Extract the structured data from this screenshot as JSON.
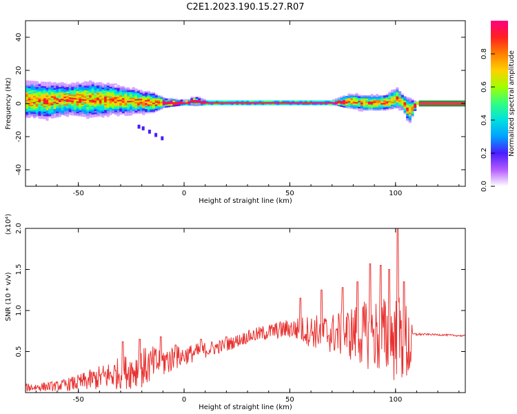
{
  "title": "C2E1.2023.190.15.27.R07",
  "colors": {
    "snr_line": "#e8312f",
    "band_red": "#e8384c",
    "band_green": "#1a9a3a",
    "colormap": [
      "#ffffff",
      "#b45cff",
      "#4a1cff",
      "#00a0ff",
      "#00e0e0",
      "#30ff80",
      "#a0ff00",
      "#ffd000",
      "#ff8000",
      "#ff2020",
      "#ff0080"
    ]
  },
  "chart_data": [
    {
      "type": "heatmap",
      "xlabel": "Height of straight line (km)",
      "ylabel": "Frequency (Hz)",
      "xlim": [
        -75,
        133
      ],
      "ylim": [
        -50,
        50
      ],
      "xticks": [
        -50,
        0,
        50,
        100
      ],
      "yticks": [
        -40,
        -20,
        0,
        20,
        40
      ],
      "colorbar": {
        "label": "Normalized spectral amplitude",
        "range": [
          0,
          1
        ],
        "ticks": [
          0.0,
          0.2,
          0.4,
          0.6,
          0.8
        ]
      },
      "ridge": {
        "x": [
          -75,
          -65,
          -55,
          -45,
          -35,
          -25,
          -15,
          -10,
          0,
          5,
          10,
          20,
          30,
          40,
          50,
          60,
          70,
          78,
          85,
          95,
          100,
          103,
          106,
          110,
          120,
          133
        ],
        "center_freq": [
          2,
          1,
          2,
          2,
          2,
          1,
          0,
          0,
          0,
          1,
          0,
          0,
          0,
          0,
          0,
          0,
          0,
          1,
          0,
          0,
          3,
          0,
          -5,
          0,
          0,
          0
        ],
        "spread": [
          7,
          7,
          6,
          7,
          6,
          5,
          4,
          2,
          1,
          2,
          1,
          1,
          1,
          1,
          1,
          1,
          1,
          3,
          3,
          3,
          4,
          3,
          5,
          0.5,
          0.5,
          0.5
        ]
      },
      "tail": {
        "x": [
          -22,
          -20,
          -17,
          -14,
          -11
        ],
        "freq": [
          -14,
          -15,
          -17,
          -19,
          -21
        ]
      }
    },
    {
      "type": "line",
      "xlabel": "Height of straight line (km)",
      "ylabel": "SNR (10 * v/v)",
      "y_multiplier": "(x10⁴)",
      "xlim": [
        -75,
        133
      ],
      "ylim": [
        0,
        2.0
      ],
      "xticks": [
        -50,
        0,
        50,
        100
      ],
      "yticks": [
        0.5,
        1.0,
        1.5,
        2.0
      ],
      "series": [
        {
          "trend_x": [
            -75,
            -60,
            -50,
            -40,
            -30,
            -20,
            -10,
            0,
            10,
            20,
            30,
            40,
            50,
            60,
            70,
            80,
            90,
            100,
            107,
            108,
            115,
            125,
            133
          ],
          "trend_y": [
            0.06,
            0.08,
            0.12,
            0.18,
            0.24,
            0.3,
            0.38,
            0.45,
            0.52,
            0.58,
            0.68,
            0.74,
            0.78,
            0.75,
            0.72,
            0.72,
            0.7,
            0.66,
            0.6,
            0.71,
            0.71,
            0.7,
            0.69
          ],
          "noise_y": [
            0.05,
            0.06,
            0.1,
            0.15,
            0.2,
            0.25,
            0.2,
            0.12,
            0.1,
            0.08,
            0.08,
            0.1,
            0.12,
            0.2,
            0.25,
            0.35,
            0.45,
            0.55,
            0.55,
            0.02,
            0.01,
            0.01,
            0.01
          ],
          "peaks": [
            {
              "x": -29,
              "y": 0.62
            },
            {
              "x": -21,
              "y": 0.65
            },
            {
              "x": -11,
              "y": 0.68
            },
            {
              "x": -4,
              "y": 0.58
            },
            {
              "x": 8,
              "y": 0.65
            },
            {
              "x": 20,
              "y": 0.68
            },
            {
              "x": 55,
              "y": 1.15
            },
            {
              "x": 65,
              "y": 1.25
            },
            {
              "x": 75,
              "y": 1.28
            },
            {
              "x": 82,
              "y": 1.35
            },
            {
              "x": 88,
              "y": 1.57
            },
            {
              "x": 93,
              "y": 1.55
            },
            {
              "x": 97,
              "y": 1.5
            },
            {
              "x": 101,
              "y": 2.0
            },
            {
              "x": 104,
              "y": 1.35
            }
          ]
        }
      ]
    }
  ]
}
